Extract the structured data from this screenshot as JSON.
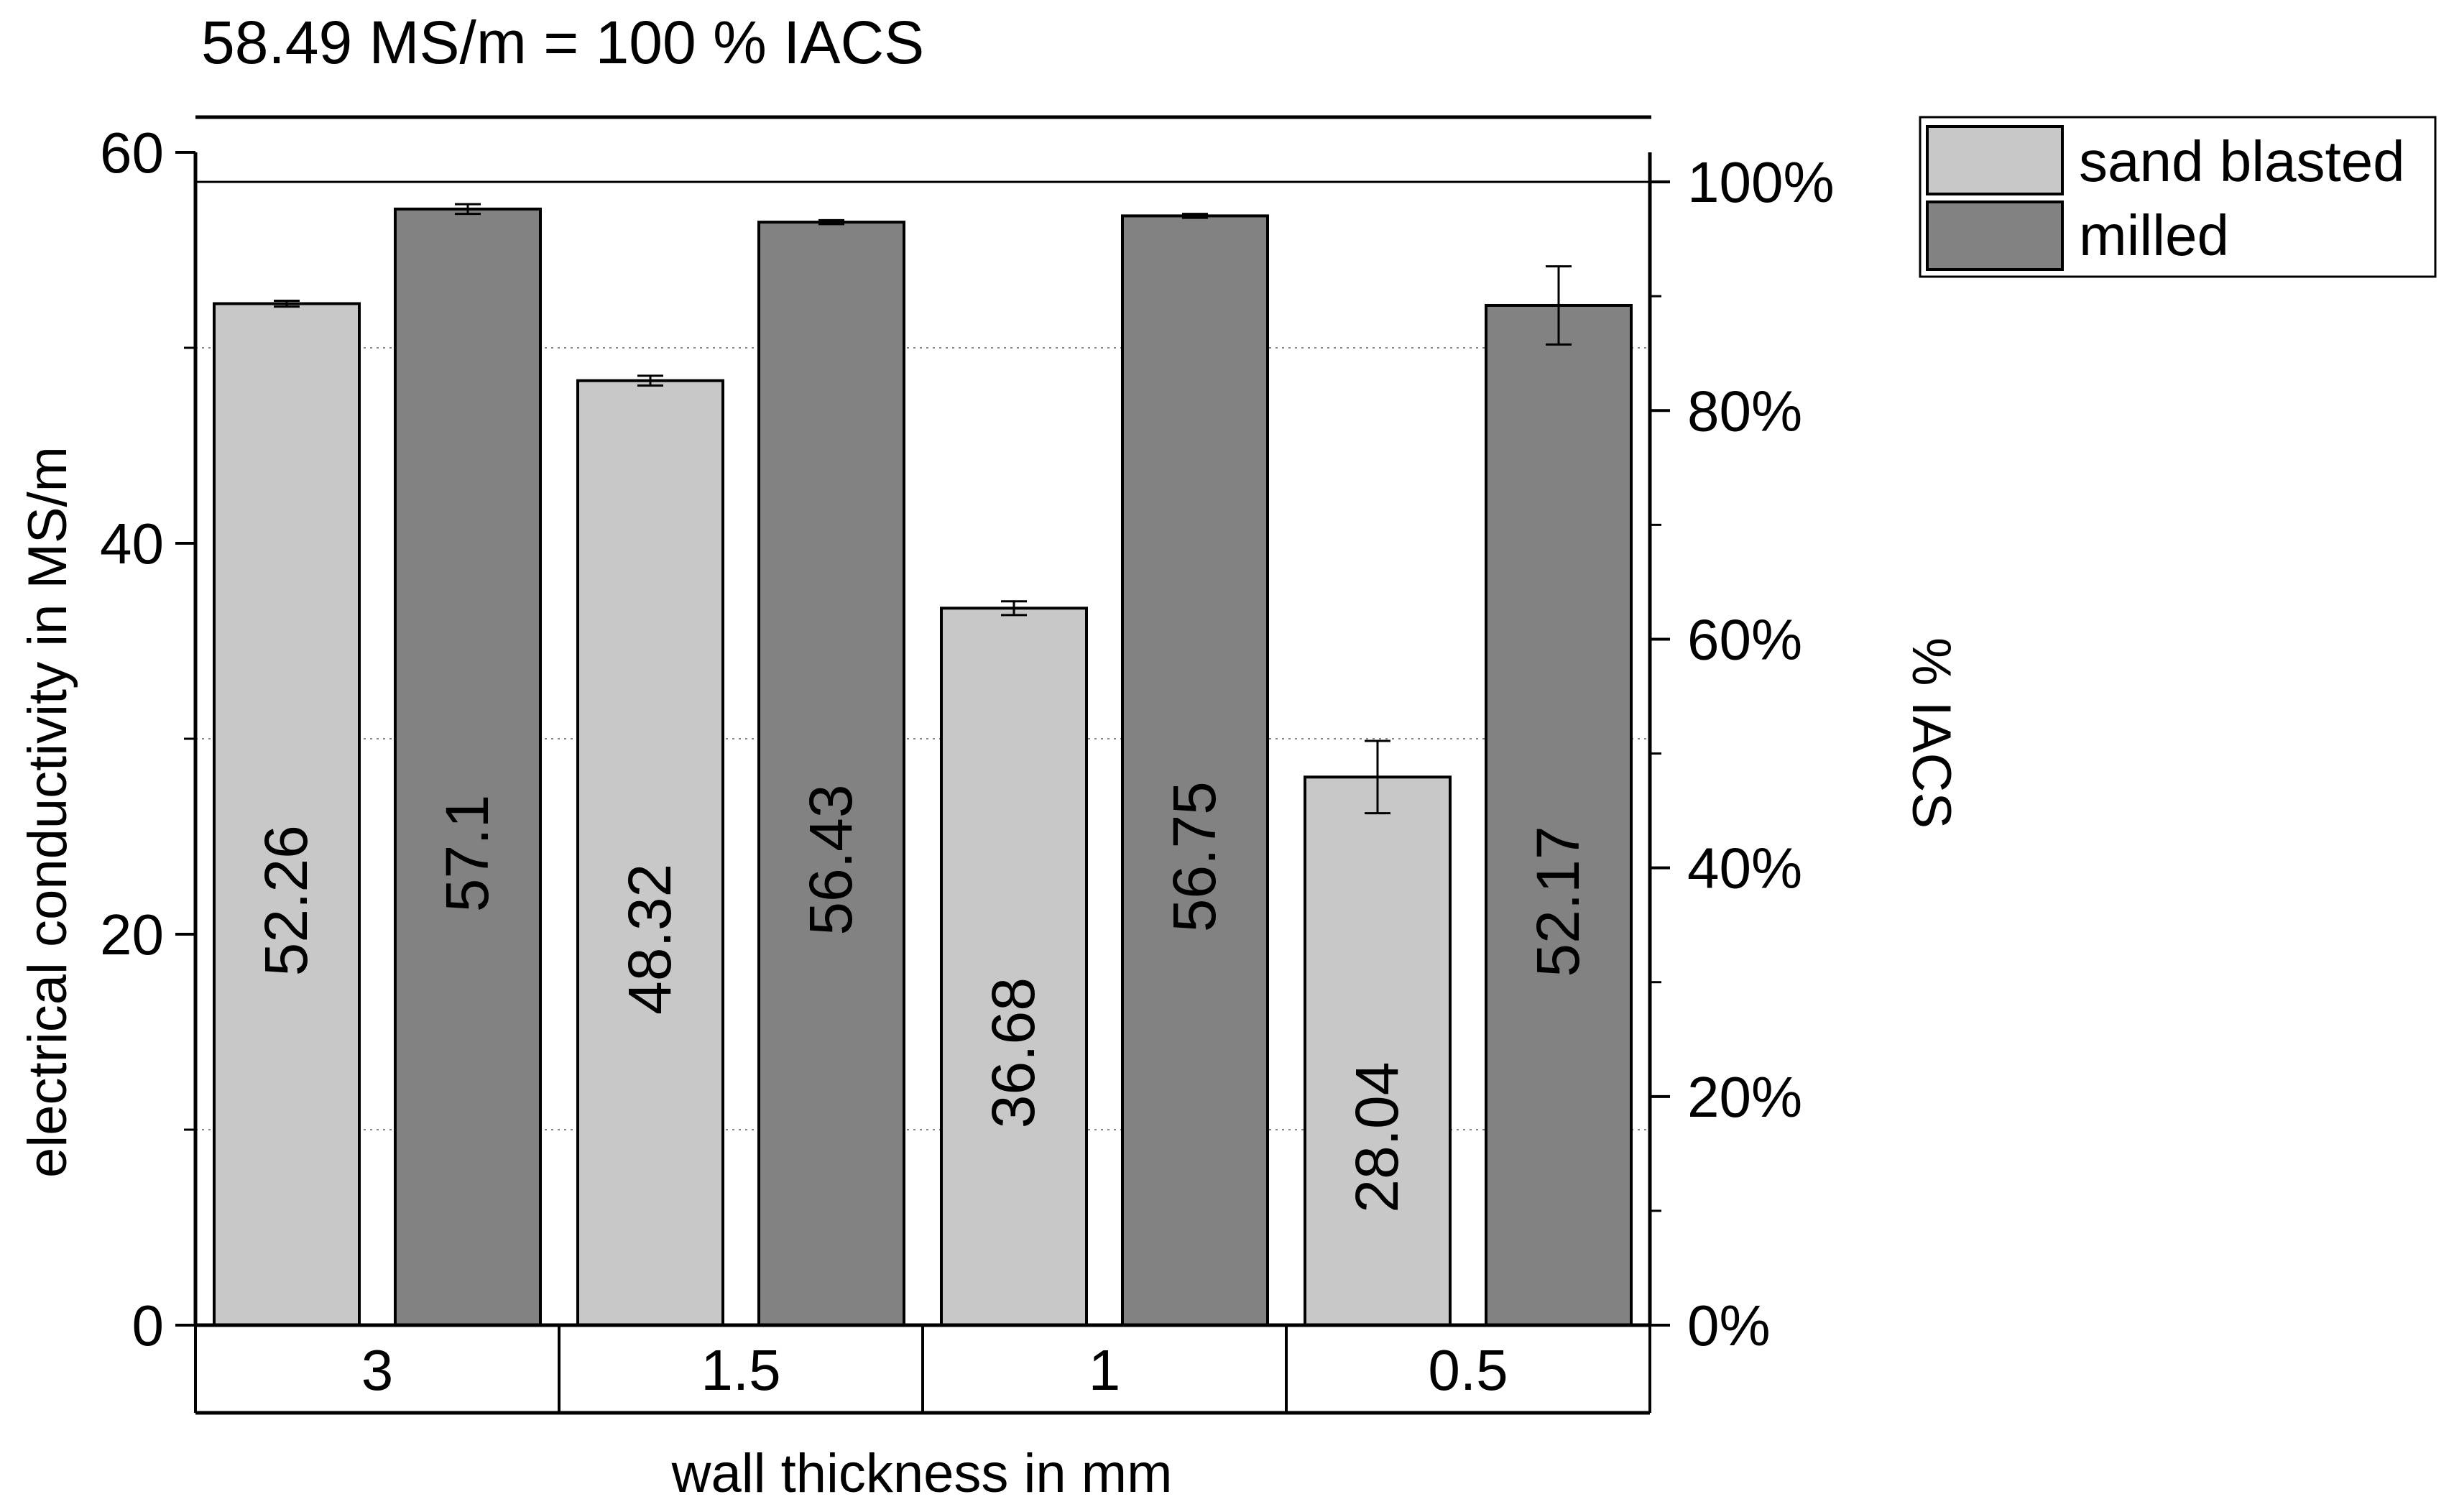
{
  "chart_data": {
    "type": "bar",
    "note": "58.49 MS/m = 100 % IACS",
    "xlabel": "wall thickness in mm",
    "ylabel": "electrical conductivity in MS/m",
    "ylabel_right": "% IACS",
    "categories": [
      "3",
      "1.5",
      "1",
      "0.5"
    ],
    "ylim": [
      0,
      60
    ],
    "yticks": [
      "0",
      "20",
      "40",
      "60"
    ],
    "yticks_minor": [
      10,
      30,
      50
    ],
    "y2_max_percent": 103.58,
    "y2ticks": [
      "0%",
      "20%",
      "40%",
      "60%",
      "80%",
      "100%"
    ],
    "iacs_reference": 58.49,
    "series": [
      {
        "name": "sand blasted",
        "color": "#c8c8c8",
        "values": [
          52.26,
          48.32,
          36.68,
          28.04
        ],
        "value_labels": [
          "52.26",
          "48.32",
          "36.68",
          "28.04"
        ],
        "errors": [
          0.15,
          0.25,
          0.35,
          1.85
        ]
      },
      {
        "name": "milled",
        "color": "#828282",
        "values": [
          57.1,
          56.43,
          56.75,
          52.17
        ],
        "value_labels": [
          "57.1",
          "56.43",
          "56.75",
          "52.17"
        ],
        "errors": [
          0.25,
          0.1,
          0.1,
          2.0
        ]
      }
    ],
    "legend_position": "top-right",
    "grid": "dotted at minor y ticks"
  }
}
